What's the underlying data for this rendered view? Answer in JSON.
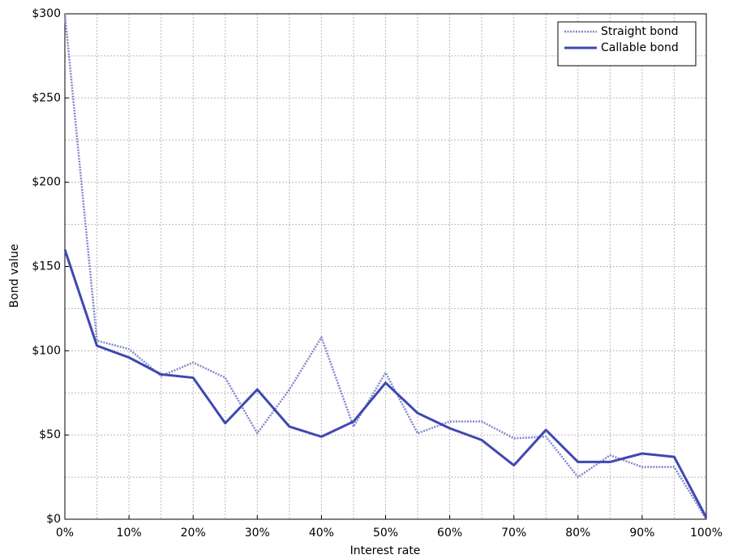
{
  "chart_data": {
    "type": "line",
    "x_label": "Interest rate",
    "y_label": "Bond value",
    "x": [
      0,
      5,
      10,
      15,
      20,
      25,
      30,
      35,
      40,
      45,
      50,
      55,
      60,
      65,
      70,
      75,
      80,
      85,
      90,
      95,
      100
    ],
    "series": [
      {
        "name": "Straight bond",
        "color": "#8286cc",
        "style": "dotted",
        "values": [
          300,
          106,
          101,
          85,
          93,
          84,
          51,
          77,
          108,
          55,
          87,
          51,
          58,
          58,
          48,
          49,
          25,
          38,
          31,
          31,
          0
        ]
      },
      {
        "name": "Callable bond",
        "color": "#3f48b0",
        "style": "solid",
        "values": [
          160,
          103,
          96,
          86,
          84,
          57,
          77,
          55,
          49,
          58,
          81,
          63,
          54,
          47,
          32,
          53,
          34,
          34,
          39,
          37,
          1
        ]
      }
    ],
    "xlim": [
      0,
      100
    ],
    "xticks": [
      {
        "value": 0,
        "label": "0%"
      },
      {
        "value": 10,
        "label": "10%"
      },
      {
        "value": 20,
        "label": "20%"
      },
      {
        "value": 30,
        "label": "30%"
      },
      {
        "value": 40,
        "label": "40%"
      },
      {
        "value": 50,
        "label": "50%"
      },
      {
        "value": 60,
        "label": "60%"
      },
      {
        "value": 70,
        "label": "70%"
      },
      {
        "value": 80,
        "label": "80%"
      },
      {
        "value": 90,
        "label": "90%"
      },
      {
        "value": 100,
        "label": "100%"
      }
    ],
    "x_minor_ticks": [
      5,
      15,
      25,
      35,
      45,
      55,
      65,
      75,
      85,
      95
    ],
    "ylim": [
      0,
      300
    ],
    "yticks": [
      {
        "value": 0,
        "label": "$0"
      },
      {
        "value": 50,
        "label": "$50"
      },
      {
        "value": 100,
        "label": "$100"
      },
      {
        "value": 150,
        "label": "$150"
      },
      {
        "value": 200,
        "label": "$200"
      },
      {
        "value": 250,
        "label": "$250"
      },
      {
        "value": 300,
        "label": "$300"
      }
    ],
    "y_minor_ticks": [
      25,
      75,
      125,
      175,
      225,
      275
    ],
    "grid": true,
    "legend": "top-right"
  }
}
